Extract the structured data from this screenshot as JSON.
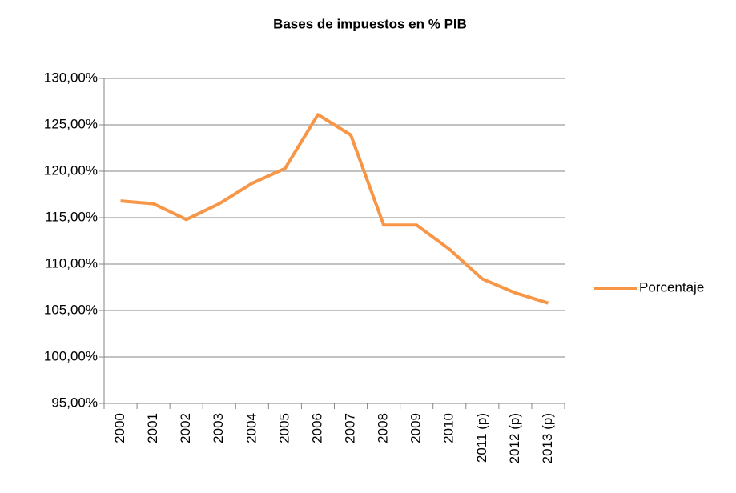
{
  "chart_data": {
    "type": "line",
    "title": "Bases de impuestos en % PIB",
    "categories": [
      "2000",
      "2001",
      "2002",
      "2003",
      "2004",
      "2005",
      "2006",
      "2007",
      "2008",
      "2009",
      "2010",
      "2011 (p)",
      "2012 (p)",
      "2013 (p)"
    ],
    "series": [
      {
        "name": "Porcentaje",
        "color": "#f79646",
        "values": [
          116.8,
          116.5,
          114.8,
          116.5,
          118.7,
          120.3,
          126.1,
          123.9,
          114.2,
          114.2,
          111.6,
          108.4,
          106.9,
          105.8
        ]
      }
    ],
    "ylim": [
      95,
      130
    ],
    "yticks": [
      {
        "value": 95,
        "label": "95,00%"
      },
      {
        "value": 100,
        "label": "100,00%"
      },
      {
        "value": 105,
        "label": "105,00%"
      },
      {
        "value": 110,
        "label": "110,00%"
      },
      {
        "value": 115,
        "label": "115,00%"
      },
      {
        "value": 120,
        "label": "120,00%"
      },
      {
        "value": 125,
        "label": "125,00%"
      },
      {
        "value": 130,
        "label": "130,00%"
      }
    ],
    "grid": true,
    "legend": "right"
  }
}
